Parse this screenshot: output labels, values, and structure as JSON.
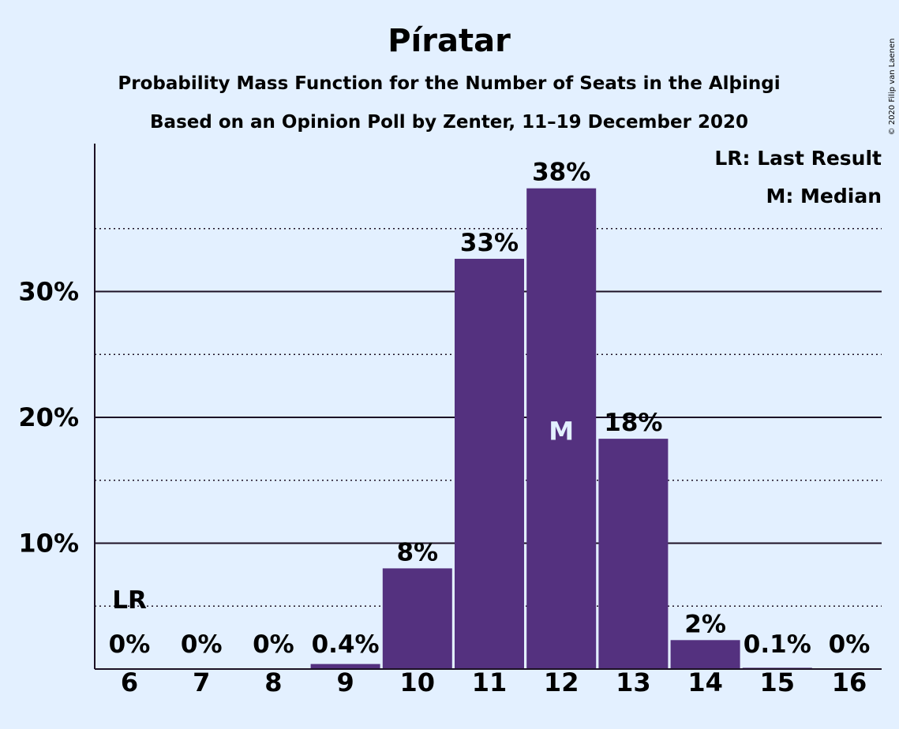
{
  "chart_data": {
    "type": "bar",
    "title": "Píratar",
    "subtitle_line1": "Probability Mass Function for the Number of Seats in the Alþingi",
    "subtitle_line2": "Based on an Opinion Poll by Zenter, 11–19 December 2020",
    "copyright": "© 2020 Filip van Laenen",
    "categories": [
      "6",
      "7",
      "8",
      "9",
      "10",
      "11",
      "12",
      "13",
      "14",
      "15",
      "16"
    ],
    "values": [
      0,
      0,
      0,
      0.4,
      8,
      32.6,
      38.2,
      18.3,
      2.3,
      0.1,
      0
    ],
    "labels": [
      "0%",
      "0%",
      "0%",
      "0.4%",
      "8%",
      "33%",
      "38%",
      "18%",
      "2%",
      "0.1%",
      "0%"
    ],
    "ylim": [
      0,
      41.5
    ],
    "yticks": [
      {
        "value": 10,
        "label": "10%"
      },
      {
        "value": 20,
        "label": "20%"
      },
      {
        "value": 30,
        "label": "30%"
      }
    ],
    "minor_gridlines": [
      5,
      15,
      25,
      35
    ],
    "last_result_category": "6",
    "last_result_mark": "LR",
    "median_category": "12",
    "median_mark": "M",
    "legend": {
      "last_result": "LR: Last Result",
      "median": "M: Median",
      "placement": "top-right"
    },
    "colors": {
      "bar": "#54317f",
      "background": "#e3f0ff",
      "text": "#1c1124",
      "axis": "#1c1124"
    }
  }
}
